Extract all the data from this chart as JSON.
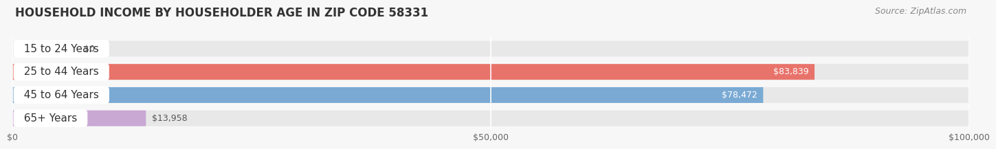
{
  "title": "HOUSEHOLD INCOME BY HOUSEHOLDER AGE IN ZIP CODE 58331",
  "source": "Source: ZipAtlas.com",
  "categories": [
    "15 to 24 Years",
    "25 to 44 Years",
    "45 to 64 Years",
    "65+ Years"
  ],
  "values": [
    0,
    83839,
    78472,
    13958
  ],
  "bar_colors": [
    "#f5c89a",
    "#e8736b",
    "#7aaad4",
    "#c9a8d4"
  ],
  "bar_height": 0.68,
  "xlim": [
    0,
    100000
  ],
  "xticks": [
    0,
    50000,
    100000
  ],
  "xtick_labels": [
    "$0",
    "$50,000",
    "$100,000"
  ],
  "background_color": "#f7f7f7",
  "bar_bg_color": "#e8e8e8",
  "title_fontsize": 12,
  "source_fontsize": 9,
  "label_fontsize": 11,
  "value_fontsize": 9,
  "tick_fontsize": 9,
  "bar_sep_color": "#ffffff"
}
